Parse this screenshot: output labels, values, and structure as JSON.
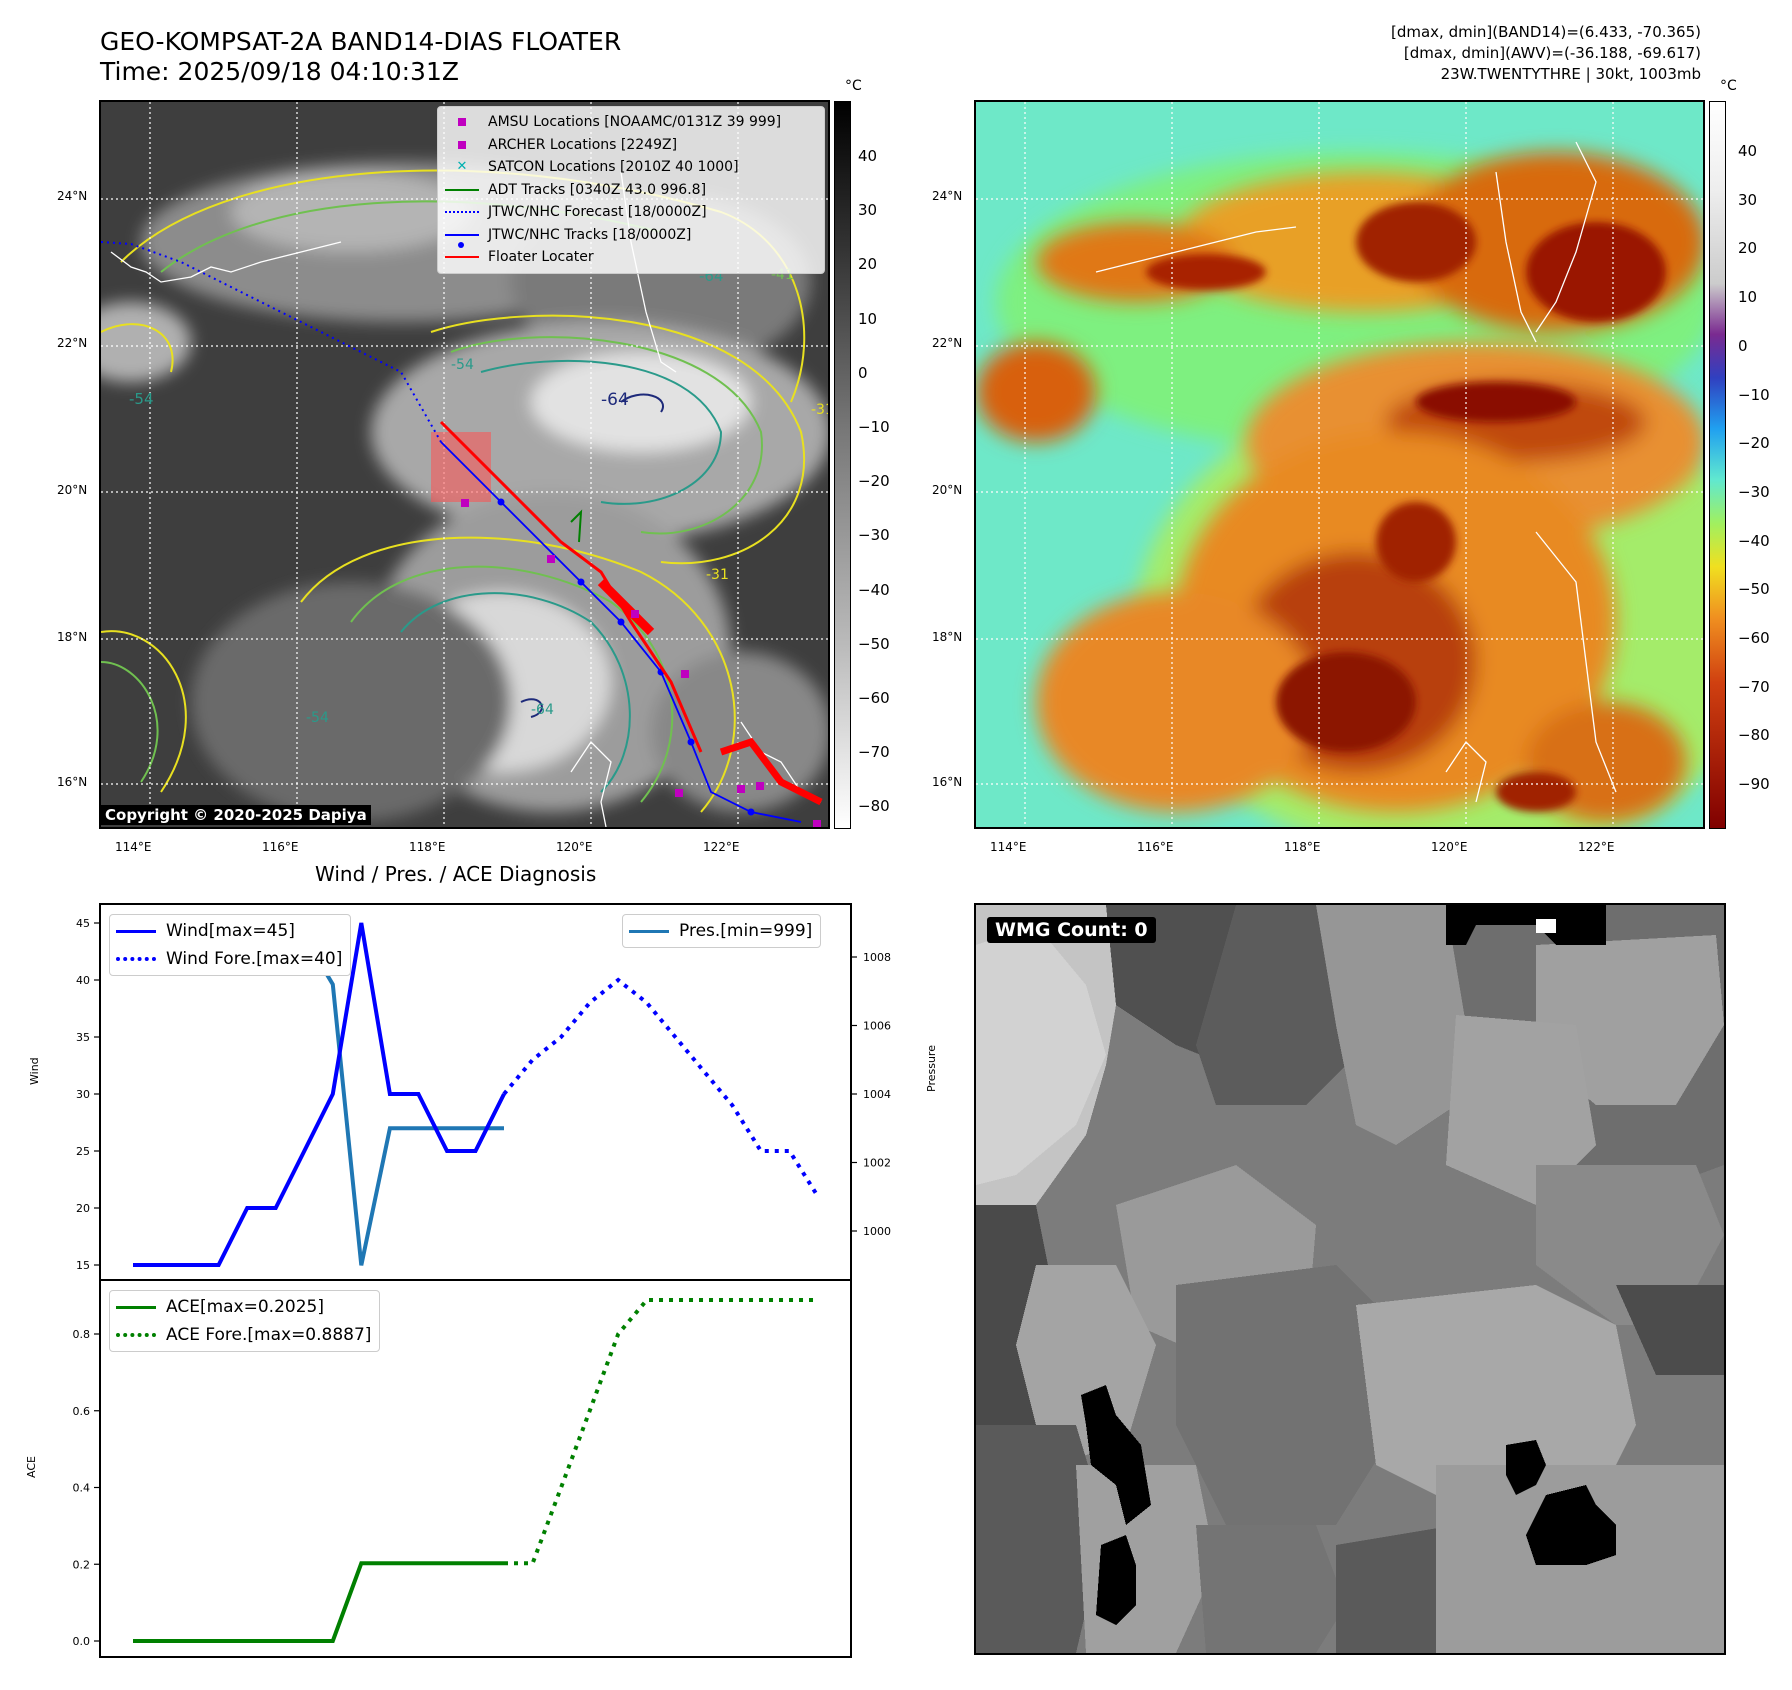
{
  "header": {
    "title_line1": "GEO-KOMPSAT-2A BAND14-DIAS FLOATER",
    "title_line2": "Time: 2025/09/18 04:10:31Z",
    "info_line1": "[dmax, dmin](BAND14)=(6.433, -70.365)",
    "info_line2": "[dmax, dmin](AWV)=(-36.188, -69.617)",
    "info_line3": "23W.TWENTYTHRE | 30kt, 1003mb"
  },
  "map_axes": {
    "lon_ticks": [
      "114°E",
      "116°E",
      "118°E",
      "120°E",
      "122°E"
    ],
    "lat_ticks": [
      "24°N",
      "22°N",
      "20°N",
      "18°N",
      "16°N"
    ]
  },
  "left_map": {
    "legend": [
      {
        "label": "AMSU Locations [NOAAMC/0131Z 39 999]",
        "symbol": "square",
        "color": "#c000c0"
      },
      {
        "label": "ARCHER Locations [2249Z]",
        "symbol": "square",
        "color": "#c000c0"
      },
      {
        "label": "SATCON Locations [2010Z 40 1000]",
        "symbol": "x",
        "color": "#00b0b0"
      },
      {
        "label": "ADT Tracks [0340Z 43.0 996.8]",
        "symbol": "line",
        "color": "#008000"
      },
      {
        "label": "JTWC/NHC Forecast [18/0000Z]",
        "symbol": "dotted",
        "color": "#0000ff"
      },
      {
        "label": "JTWC/NHC Tracks [18/0000Z]",
        "symbol": "line-dot",
        "color": "#0000ff"
      },
      {
        "label": "Floater Locater",
        "symbol": "line",
        "color": "#ff0000"
      }
    ],
    "copyright": "Copyright © 2020-2025 Dapiya",
    "colorbar_unit": "°C",
    "colorbar_ticks": [
      "40",
      "30",
      "20",
      "10",
      "0",
      "−10",
      "−20",
      "−30",
      "−40",
      "−50",
      "−60",
      "−70",
      "−80"
    ],
    "contour_labels": [
      "-64",
      "-54",
      "-31",
      "-41",
      "-64",
      "-54",
      "-31",
      "-64",
      "-54"
    ]
  },
  "right_map": {
    "colorbar_unit": "°C",
    "colorbar_ticks": [
      "40",
      "30",
      "20",
      "10",
      "0",
      "−10",
      "−20",
      "−30",
      "−40",
      "−50",
      "−60",
      "−70",
      "−80",
      "−90"
    ]
  },
  "diagnosis": {
    "title": "Wind / Pres. / ACE Diagnosis",
    "wind_ylabel": "Wind",
    "pres_ylabel": "Pressure",
    "ace_ylabel": "ACE",
    "wind_yticks": [
      "45",
      "40",
      "35",
      "30",
      "25",
      "20",
      "15"
    ],
    "pres_yticks": [
      "1008",
      "1006",
      "1004",
      "1002",
      "1000"
    ],
    "ace_yticks": [
      "0.8",
      "0.6",
      "0.4",
      "0.2",
      "0.0"
    ],
    "legend_wind": "Wind[max=45]",
    "legend_wind_fore": "Wind Fore.[max=40]",
    "legend_pres": "Pres.[min=999]",
    "legend_ace": "ACE[max=0.2025]",
    "legend_ace_fore": "ACE Fore.[max=0.8887]"
  },
  "wmg": {
    "label": "WMG Count: 0"
  },
  "chart_data": [
    {
      "type": "line",
      "title": "Wind / Pres. / ACE Diagnosis",
      "ylabel": "Wind",
      "ylim": [
        14.5,
        46.5
      ],
      "series": [
        {
          "name": "Wind[max=45]",
          "x": [
            0,
            1,
            2,
            3,
            4,
            5,
            6,
            7,
            8,
            9,
            10,
            11,
            12,
            13
          ],
          "values": [
            15,
            15,
            15,
            15,
            20,
            20,
            25,
            30,
            45,
            30,
            30,
            25,
            25,
            30
          ]
        },
        {
          "name": "Wind Fore.[max=40]",
          "x": [
            13,
            14,
            15,
            16,
            17,
            18,
            19,
            20,
            21,
            22,
            23,
            24
          ],
          "values": [
            30,
            33,
            35,
            38,
            40,
            38,
            35,
            32,
            29,
            25,
            25,
            21
          ]
        }
      ]
    },
    {
      "type": "line",
      "ylabel": "Pressure",
      "ylim": [
        999,
        1009
      ],
      "series": [
        {
          "name": "Pres.[min=999]",
          "x": [
            0,
            1,
            2,
            3,
            4,
            5,
            6,
            7,
            8,
            9,
            10,
            11,
            12,
            13
          ],
          "values": [
            1009,
            1009,
            1008.6,
            1008.6,
            1008.6,
            1008.6,
            1008.6,
            1007.2,
            999,
            1003,
            1003,
            1003,
            1003,
            1003
          ]
        }
      ]
    },
    {
      "type": "line",
      "ylabel": "ACE",
      "ylim": [
        -0.03,
        0.96
      ],
      "series": [
        {
          "name": "ACE[max=0.2025]",
          "x": [
            0,
            1,
            2,
            3,
            4,
            5,
            6,
            7,
            8,
            9,
            10,
            11,
            12,
            13
          ],
          "values": [
            0,
            0,
            0,
            0,
            0,
            0,
            0,
            0,
            0.2025,
            0.2025,
            0.2025,
            0.2025,
            0.2025,
            0.2025
          ]
        },
        {
          "name": "ACE Fore.[max=0.8887]",
          "x": [
            13,
            14,
            15,
            16,
            17,
            18,
            19,
            20,
            21,
            22,
            23,
            24
          ],
          "values": [
            0.2025,
            0.2025,
            0.4,
            0.6,
            0.8,
            0.8887,
            0.8887,
            0.8887,
            0.8887,
            0.8887,
            0.8887,
            0.8887
          ]
        }
      ]
    }
  ]
}
